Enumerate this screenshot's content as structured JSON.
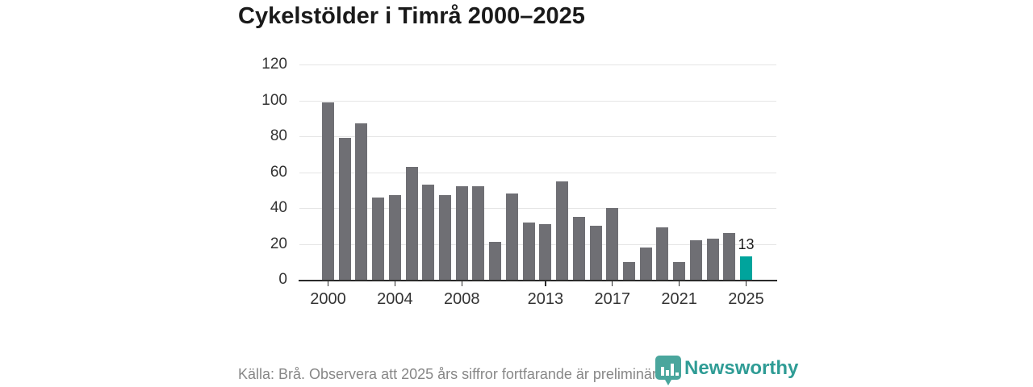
{
  "title": "Cykelstölder i Timrå 2000–2025",
  "footer": {
    "source_note": "Källa: Brå. Observera att 2025 års siffror fortfarande är preliminära."
  },
  "branding": {
    "logo_text": "Newsworthy",
    "logo_icon": "newsworthy-shield-bar-chart-icon"
  },
  "colors": {
    "bar": "#6f6f74",
    "highlight": "#00a49c",
    "grid": "#e5e5e5",
    "axis": "#2b2b2b",
    "title_text": "#1a1a1a",
    "tick_text": "#333333",
    "footer_text": "#878787",
    "logo_teal": "#2f9c95",
    "logo_shield": "#4aa69d"
  },
  "chart_data": {
    "type": "bar",
    "title": "Cykelstölder i Timrå 2000–2025",
    "xlabel": "",
    "ylabel": "",
    "x": [
      2000,
      2001,
      2002,
      2003,
      2004,
      2005,
      2006,
      2007,
      2008,
      2009,
      2010,
      2011,
      2012,
      2013,
      2014,
      2015,
      2016,
      2017,
      2018,
      2019,
      2020,
      2021,
      2022,
      2023,
      2024,
      2025
    ],
    "values": [
      99,
      79,
      87,
      46,
      47,
      63,
      53,
      47,
      52,
      52,
      21,
      48,
      32,
      31,
      55,
      35,
      30,
      40,
      10,
      18,
      29,
      10,
      22,
      23,
      26,
      13
    ],
    "highlight_index": 25,
    "bar_label": {
      "index": 25,
      "text": "13"
    },
    "y_ticks": [
      0,
      20,
      40,
      60,
      80,
      100,
      120
    ],
    "x_tick_labels": [
      "2000",
      "2004",
      "2008",
      "2013",
      "2017",
      "2021",
      "2025"
    ],
    "ylim": [
      0,
      120
    ],
    "grid": "horizontal",
    "legend": "none"
  }
}
